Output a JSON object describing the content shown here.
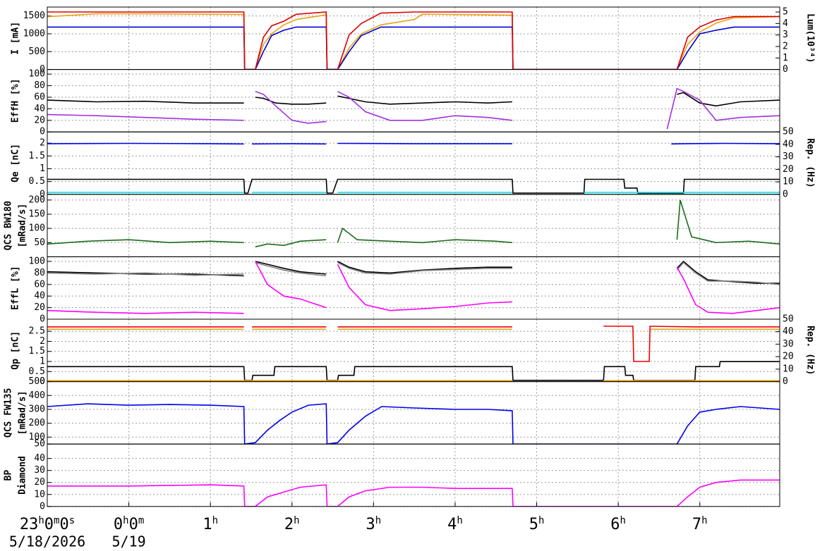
{
  "chart_data": [
    {
      "type": "line",
      "ylabel": [
        "I [mA]"
      ],
      "y2label": [
        "Lum(10³⁴)"
      ],
      "grid": true,
      "xlim": [
        0,
        8.98
      ],
      "ylim": [
        0,
        1750
      ],
      "yticks": [
        0,
        500,
        1000,
        1500
      ],
      "y2lim": [
        0,
        5.43
      ],
      "y2ticks": [
        0,
        1,
        2,
        3,
        4,
        5
      ],
      "x": [
        0,
        0.6,
        1.2,
        1.8,
        2.41,
        2.42,
        2.55,
        2.65,
        2.75,
        2.9,
        3.05,
        3.42,
        3.43,
        3.56,
        3.7,
        3.85,
        4.09,
        4.5,
        4.6,
        5.0,
        5.7,
        5.71,
        6.5,
        7.72,
        7.85,
        8.0,
        8.2,
        8.42,
        8.98
      ],
      "series": [
        {
          "color": "#e8a317",
          "values": [
            1480,
            1560,
            1560,
            1550,
            1540,
            0,
            0,
            700,
            1000,
            1250,
            1400,
            1530,
            0,
            0,
            600,
            1000,
            1250,
            1400,
            1550,
            1540,
            1520,
            0,
            0,
            0,
            700,
            1050,
            1300,
            1450,
            1480
          ]
        },
        {
          "color": "#0000cc",
          "values": [
            1190,
            1190,
            1190,
            1190,
            1190,
            0,
            0,
            500,
            950,
            1100,
            1190,
            1190,
            0,
            0,
            500,
            950,
            1190,
            1190,
            1190,
            1190,
            1190,
            0,
            0,
            0,
            500,
            1000,
            1100,
            1190,
            1190
          ]
        },
        {
          "color": "#dd0000",
          "axis": "y2",
          "values": [
            5.0,
            5.0,
            5.0,
            5.0,
            5.0,
            0,
            0,
            2.8,
            3.8,
            4.2,
            4.8,
            5.0,
            0,
            0,
            3.0,
            4.0,
            4.9,
            5.0,
            5.0,
            5.0,
            5.0,
            0,
            0,
            0,
            2.8,
            3.7,
            4.3,
            4.6,
            4.6
          ]
        }
      ]
    },
    {
      "type": "line",
      "ylabel": [
        "EffH [%]"
      ],
      "grid": true,
      "xlim": [
        0,
        8.98
      ],
      "ylim": [
        0,
        108
      ],
      "yticks": [
        0,
        20,
        40,
        60,
        80,
        100
      ],
      "x": [
        0,
        0.6,
        1.2,
        1.8,
        2.41,
        2.42,
        2.55,
        2.65,
        2.8,
        3.0,
        3.2,
        3.42,
        3.43,
        3.56,
        3.7,
        3.9,
        4.2,
        4.6,
        5.0,
        5.4,
        5.7,
        5.71,
        7.6,
        7.72,
        7.8,
        8.0,
        8.2,
        8.5,
        8.98
      ],
      "series": [
        {
          "color": "#000000",
          "values": [
            55,
            52,
            53,
            50,
            50,
            null,
            60,
            58,
            50,
            48,
            48,
            50,
            null,
            62,
            58,
            52,
            48,
            50,
            52,
            50,
            52,
            null,
            null,
            65,
            68,
            50,
            45,
            52,
            55
          ]
        },
        {
          "color": "#a030e0",
          "values": [
            30,
            28,
            25,
            22,
            20,
            null,
            70,
            65,
            45,
            20,
            15,
            18,
            null,
            70,
            60,
            35,
            20,
            20,
            28,
            25,
            20,
            null,
            5,
            75,
            70,
            55,
            20,
            25,
            28
          ]
        }
      ]
    },
    {
      "type": "line",
      "ylabel": [
        "Qe [nC]"
      ],
      "y2label": [
        "Rep. (Hz)"
      ],
      "grid": true,
      "xlim": [
        0,
        8.98
      ],
      "ylim": [
        0,
        2.44
      ],
      "yticks": [
        0,
        0.5,
        1,
        1.5,
        2
      ],
      "y2lim": [
        0,
        50
      ],
      "y2ticks": [
        0,
        10,
        20,
        30,
        40,
        50
      ],
      "x": [
        0,
        1.0,
        2.0,
        2.41,
        2.42,
        2.46,
        2.51,
        3.0,
        3.42,
        3.43,
        3.5,
        3.56,
        4.5,
        5.7,
        5.71,
        5.95,
        6.58,
        6.59,
        7.07,
        7.08,
        7.23,
        7.24,
        7.65,
        7.8,
        7.81,
        8.3,
        8.98
      ],
      "series": [
        {
          "color": "#0000ee",
          "values": [
            1.98,
            1.99,
            1.98,
            1.97,
            null,
            null,
            1.97,
            1.98,
            1.97,
            null,
            null,
            1.99,
            1.98,
            1.98,
            null,
            null,
            null,
            null,
            null,
            null,
            null,
            null,
            1.97,
            1.98,
            1.98,
            1.99,
            1.98
          ]
        },
        {
          "color": "#000000",
          "axis": "y2",
          "values": [
            12,
            12,
            12,
            12,
            1,
            1,
            12,
            12,
            12,
            1,
            1,
            12,
            12,
            12,
            1,
            1,
            1,
            12,
            12,
            5,
            5,
            1,
            1,
            1,
            12,
            12,
            12
          ]
        },
        {
          "color": "#00e5ee",
          "axis": "y2",
          "values": [
            1.5,
            1.5,
            1.5,
            1.5,
            null,
            null,
            1.5,
            1.5,
            1.5,
            null,
            null,
            1.5,
            1.5,
            1.5,
            null,
            null,
            1.5,
            1.5,
            1.5,
            1.5,
            1.5,
            1.5,
            1.5,
            1.5,
            1.5,
            1.5,
            1.5
          ]
        }
      ]
    },
    {
      "type": "line",
      "ylabel": [
        "QCS BW180",
        "[mRad/s]"
      ],
      "grid": true,
      "xlim": [
        0,
        8.98
      ],
      "ylim": [
        0,
        220
      ],
      "yticks": [
        50,
        100,
        150,
        200
      ],
      "x": [
        0,
        0.5,
        1.0,
        1.5,
        2.0,
        2.41,
        2.42,
        2.55,
        2.7,
        2.9,
        3.1,
        3.42,
        3.43,
        3.56,
        3.62,
        3.8,
        4.2,
        4.6,
        5.0,
        5.5,
        5.7,
        5.71,
        7.72,
        7.76,
        7.9,
        8.2,
        8.6,
        8.98
      ],
      "series": [
        {
          "color": "#1a6b1a",
          "values": [
            45,
            55,
            60,
            50,
            55,
            50,
            null,
            35,
            45,
            40,
            55,
            60,
            null,
            50,
            100,
            60,
            55,
            50,
            60,
            55,
            50,
            null,
            60,
            200,
            70,
            50,
            55,
            45
          ]
        }
      ]
    },
    {
      "type": "line",
      "ylabel": [
        "EffL [%]"
      ],
      "grid": true,
      "xlim": [
        0,
        8.98
      ],
      "ylim": [
        0,
        108
      ],
      "yticks": [
        0,
        20,
        40,
        60,
        80,
        100
      ],
      "x": [
        0,
        0.6,
        1.2,
        1.8,
        2.41,
        2.42,
        2.55,
        2.7,
        2.9,
        3.1,
        3.42,
        3.43,
        3.56,
        3.7,
        3.9,
        4.2,
        4.6,
        5.0,
        5.4,
        5.7,
        5.71,
        7.72,
        7.8,
        7.95,
        8.1,
        8.4,
        8.7,
        8.98
      ],
      "series": [
        {
          "color": "#000000",
          "values": [
            82,
            80,
            78,
            78,
            75,
            null,
            100,
            95,
            88,
            82,
            78,
            null,
            100,
            90,
            82,
            80,
            85,
            88,
            90,
            90,
            null,
            88,
            100,
            82,
            68,
            65,
            62,
            62
          ]
        },
        {
          "color": "#808080",
          "values": [
            80,
            78,
            80,
            76,
            78,
            null,
            98,
            92,
            85,
            80,
            75,
            null,
            98,
            88,
            80,
            78,
            84,
            86,
            88,
            88,
            null,
            85,
            98,
            80,
            66,
            66,
            64,
            60
          ]
        },
        {
          "color": "#ff00ff",
          "values": [
            15,
            12,
            10,
            12,
            10,
            null,
            100,
            60,
            40,
            35,
            20,
            null,
            95,
            55,
            25,
            15,
            18,
            22,
            28,
            30,
            null,
            90,
            70,
            25,
            12,
            10,
            15,
            20
          ]
        }
      ]
    },
    {
      "type": "line",
      "ylabel": [
        "Qp [nC]"
      ],
      "y2label": [
        "Rep. (Hz)"
      ],
      "grid": true,
      "xlim": [
        0,
        8.98
      ],
      "ylim": [
        0,
        3.1
      ],
      "yticks": [
        0,
        0.5,
        1,
        1.5,
        2,
        2.5
      ],
      "y2lim": [
        0,
        50
      ],
      "y2ticks": [
        0,
        10,
        20,
        30,
        40,
        50
      ],
      "x": [
        0,
        1.0,
        2.41,
        2.42,
        2.51,
        2.52,
        2.78,
        2.79,
        3.42,
        3.43,
        3.56,
        3.57,
        3.76,
        3.77,
        5.7,
        5.71,
        6.82,
        6.83,
        7.08,
        7.09,
        7.18,
        7.19,
        7.38,
        7.39,
        7.94,
        7.95,
        8.24,
        8.25,
        8.98
      ],
      "series": [
        {
          "color": "#e8a317",
          "values": [
            2.6,
            2.6,
            2.6,
            null,
            2.6,
            2.6,
            2.6,
            2.6,
            2.6,
            null,
            2.6,
            2.6,
            2.6,
            2.6,
            2.6,
            null,
            null,
            null,
            null,
            null,
            null,
            null,
            null,
            2.6,
            2.6,
            2.6,
            2.6,
            2.6,
            2.6
          ]
        },
        {
          "color": "#ee0000",
          "values": [
            2.72,
            2.72,
            2.72,
            null,
            2.72,
            2.72,
            2.72,
            2.72,
            2.72,
            null,
            2.72,
            2.72,
            2.72,
            2.72,
            2.72,
            null,
            2.75,
            2.75,
            2.75,
            2.75,
            2.75,
            1.0,
            1.0,
            2.75,
            2.72,
            2.72,
            2.72,
            2.72,
            2.72
          ]
        },
        {
          "color": "#000000",
          "axis": "y2",
          "values": [
            12,
            12,
            12,
            1,
            1,
            5,
            5,
            12,
            12,
            1,
            1,
            5,
            5,
            12,
            12,
            1,
            1,
            12,
            12,
            5,
            5,
            1,
            1,
            1,
            1,
            12,
            12,
            16,
            16
          ]
        },
        {
          "color": "#f0a000",
          "axis": "y2",
          "values": [
            0.8,
            0.8,
            0.8,
            0.8,
            0.8,
            0.8,
            0.8,
            0.8,
            0.8,
            0.8,
            0.8,
            0.8,
            0.8,
            0.8,
            0.8,
            null,
            0.8,
            0.8,
            0.8,
            0.8,
            0.8,
            0.8,
            0.8,
            0.8,
            0.8,
            0.8,
            0.8,
            0.8,
            0.8
          ]
        }
      ]
    },
    {
      "type": "line",
      "ylabel": [
        "QCS FW135",
        "[mRad/s]"
      ],
      "grid": true,
      "xlim": [
        0,
        8.98
      ],
      "ylim": [
        50,
        500
      ],
      "yticks": [
        50,
        100,
        200,
        300,
        400,
        500
      ],
      "x": [
        0,
        0.5,
        1.0,
        1.5,
        2.0,
        2.41,
        2.42,
        2.55,
        2.7,
        2.85,
        3.0,
        3.2,
        3.42,
        3.43,
        3.56,
        3.7,
        3.9,
        4.1,
        4.5,
        5.0,
        5.4,
        5.7,
        5.71,
        7.72,
        7.85,
        8.0,
        8.2,
        8.5,
        8.98
      ],
      "series": [
        {
          "color": "#0000ee",
          "values": [
            320,
            340,
            330,
            335,
            330,
            320,
            50,
            60,
            150,
            220,
            280,
            330,
            340,
            50,
            60,
            150,
            250,
            320,
            310,
            300,
            300,
            290,
            50,
            50,
            180,
            280,
            300,
            320,
            300
          ]
        }
      ]
    },
    {
      "type": "line",
      "ylabel": [
        "BP",
        "Diamond"
      ],
      "grid": true,
      "xlim": [
        0,
        8.98
      ],
      "ylim": [
        0,
        52
      ],
      "yticks": [
        0,
        10,
        20,
        30,
        40
      ],
      "xticks": [
        {
          "value": 0,
          "label": "23h0m0s"
        },
        {
          "value": 1,
          "label": "0h0m"
        },
        {
          "value": 2,
          "label": "1h"
        },
        {
          "value": 3,
          "label": "2h"
        },
        {
          "value": 4,
          "label": "3h"
        },
        {
          "value": 5,
          "label": "4h"
        },
        {
          "value": 6,
          "label": "5h"
        },
        {
          "value": 7,
          "label": "6h"
        },
        {
          "value": 8,
          "label": "7h"
        }
      ],
      "dates": [
        {
          "value": 0,
          "label": "5/18/2026"
        },
        {
          "value": 1,
          "label": "5/19"
        }
      ],
      "x": [
        0,
        1.0,
        2.0,
        2.41,
        2.42,
        2.55,
        2.7,
        2.9,
        3.1,
        3.42,
        3.43,
        3.56,
        3.7,
        3.9,
        4.2,
        4.6,
        5.0,
        5.5,
        5.7,
        5.71,
        7.72,
        7.85,
        8.0,
        8.2,
        8.5,
        8.98
      ],
      "series": [
        {
          "color": "#ff00ff",
          "values": [
            17,
            17,
            18,
            17,
            0,
            0,
            8,
            12,
            16,
            18,
            0,
            0,
            8,
            13,
            16,
            16,
            15,
            15,
            15,
            0,
            0,
            8,
            16,
            20,
            22,
            22
          ]
        }
      ]
    }
  ]
}
